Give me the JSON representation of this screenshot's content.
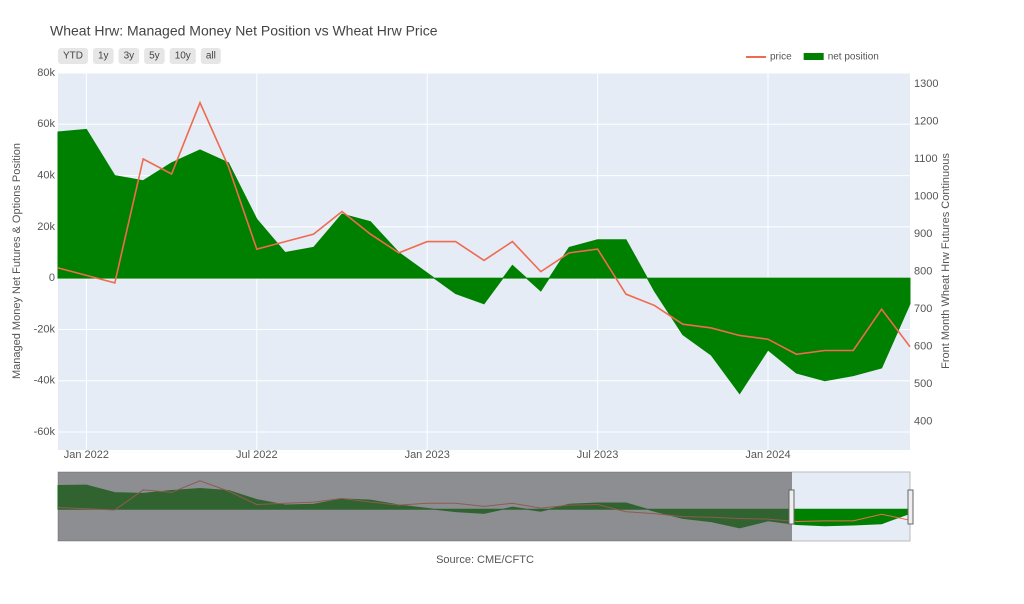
{
  "chart_data": {
    "type": "line",
    "title": "Wheat Hrw: Managed Money Net Position vs Wheat Hrw Price",
    "buttons": [
      "YTD",
      "1y",
      "3y",
      "5y",
      "10y",
      "all"
    ],
    "annotation": "Source: CME/CFTC",
    "ylabel": "Managed Money Net Futures & Options Position",
    "y2label": "Front Month Wheat Hrw Futures Continuous",
    "x": [
      "2021-12",
      "2022-01",
      "2022-02",
      "2022-03",
      "2022-04",
      "2022-05",
      "2022-06",
      "2022-07",
      "2022-08",
      "2022-09",
      "2022-10",
      "2022-11",
      "2022-12",
      "2023-01",
      "2023-02",
      "2023-03",
      "2023-04",
      "2023-05",
      "2023-06",
      "2023-07",
      "2023-08",
      "2023-09",
      "2023-10",
      "2023-11",
      "2023-12",
      "2024-01",
      "2024-02",
      "2024-03",
      "2024-04",
      "2024-05",
      "2024-06"
    ],
    "xlim": [
      "2021-12",
      "2024-06"
    ],
    "xticks": [
      {
        "value": "2022-01",
        "label": "Jan 2022"
      },
      {
        "value": "2022-07",
        "label": "Jul 2022"
      },
      {
        "value": "2023-01",
        "label": "Jan 2023"
      },
      {
        "value": "2023-07",
        "label": "Jul 2023"
      },
      {
        "value": "2024-01",
        "label": "Jan 2024"
      }
    ],
    "ylim": [
      -67000,
      80000
    ],
    "yticks": [
      {
        "value": 80000,
        "label": "80k"
      },
      {
        "value": 60000,
        "label": "60k"
      },
      {
        "value": 40000,
        "label": "40k"
      },
      {
        "value": 20000,
        "label": "20k"
      },
      0,
      {
        "value": -20000,
        "label": "-20k"
      },
      {
        "value": -40000,
        "label": "-40k"
      },
      {
        "value": -60000,
        "label": "-60k"
      }
    ],
    "y2lim": [
      325,
      1329
    ],
    "y2ticks": [
      1300,
      1200,
      1100,
      1000,
      900,
      800,
      700,
      600,
      500,
      400
    ],
    "grid": true,
    "series": [
      {
        "name": "price",
        "color": "#ef6a4f",
        "axis": "y2",
        "values": [
          810,
          790,
          770,
          1100,
          1060,
          1250,
          1080,
          860,
          880,
          900,
          960,
          900,
          850,
          880,
          880,
          830,
          880,
          800,
          850,
          860,
          740,
          710,
          660,
          650,
          630,
          620,
          580,
          590,
          590,
          700,
          600
        ]
      },
      {
        "name": "net position",
        "color": "#008000",
        "fill": "tozeroy",
        "values": [
          57000,
          58000,
          40000,
          38000,
          45000,
          50000,
          45000,
          23000,
          10000,
          12000,
          25000,
          22000,
          10000,
          2000,
          -6000,
          -10000,
          5000,
          -5000,
          12000,
          15000,
          15000,
          -5000,
          -22000,
          -30000,
          -45000,
          -28000,
          -37000,
          -40000,
          -38000,
          -35000,
          -10000
        ]
      }
    ]
  }
}
